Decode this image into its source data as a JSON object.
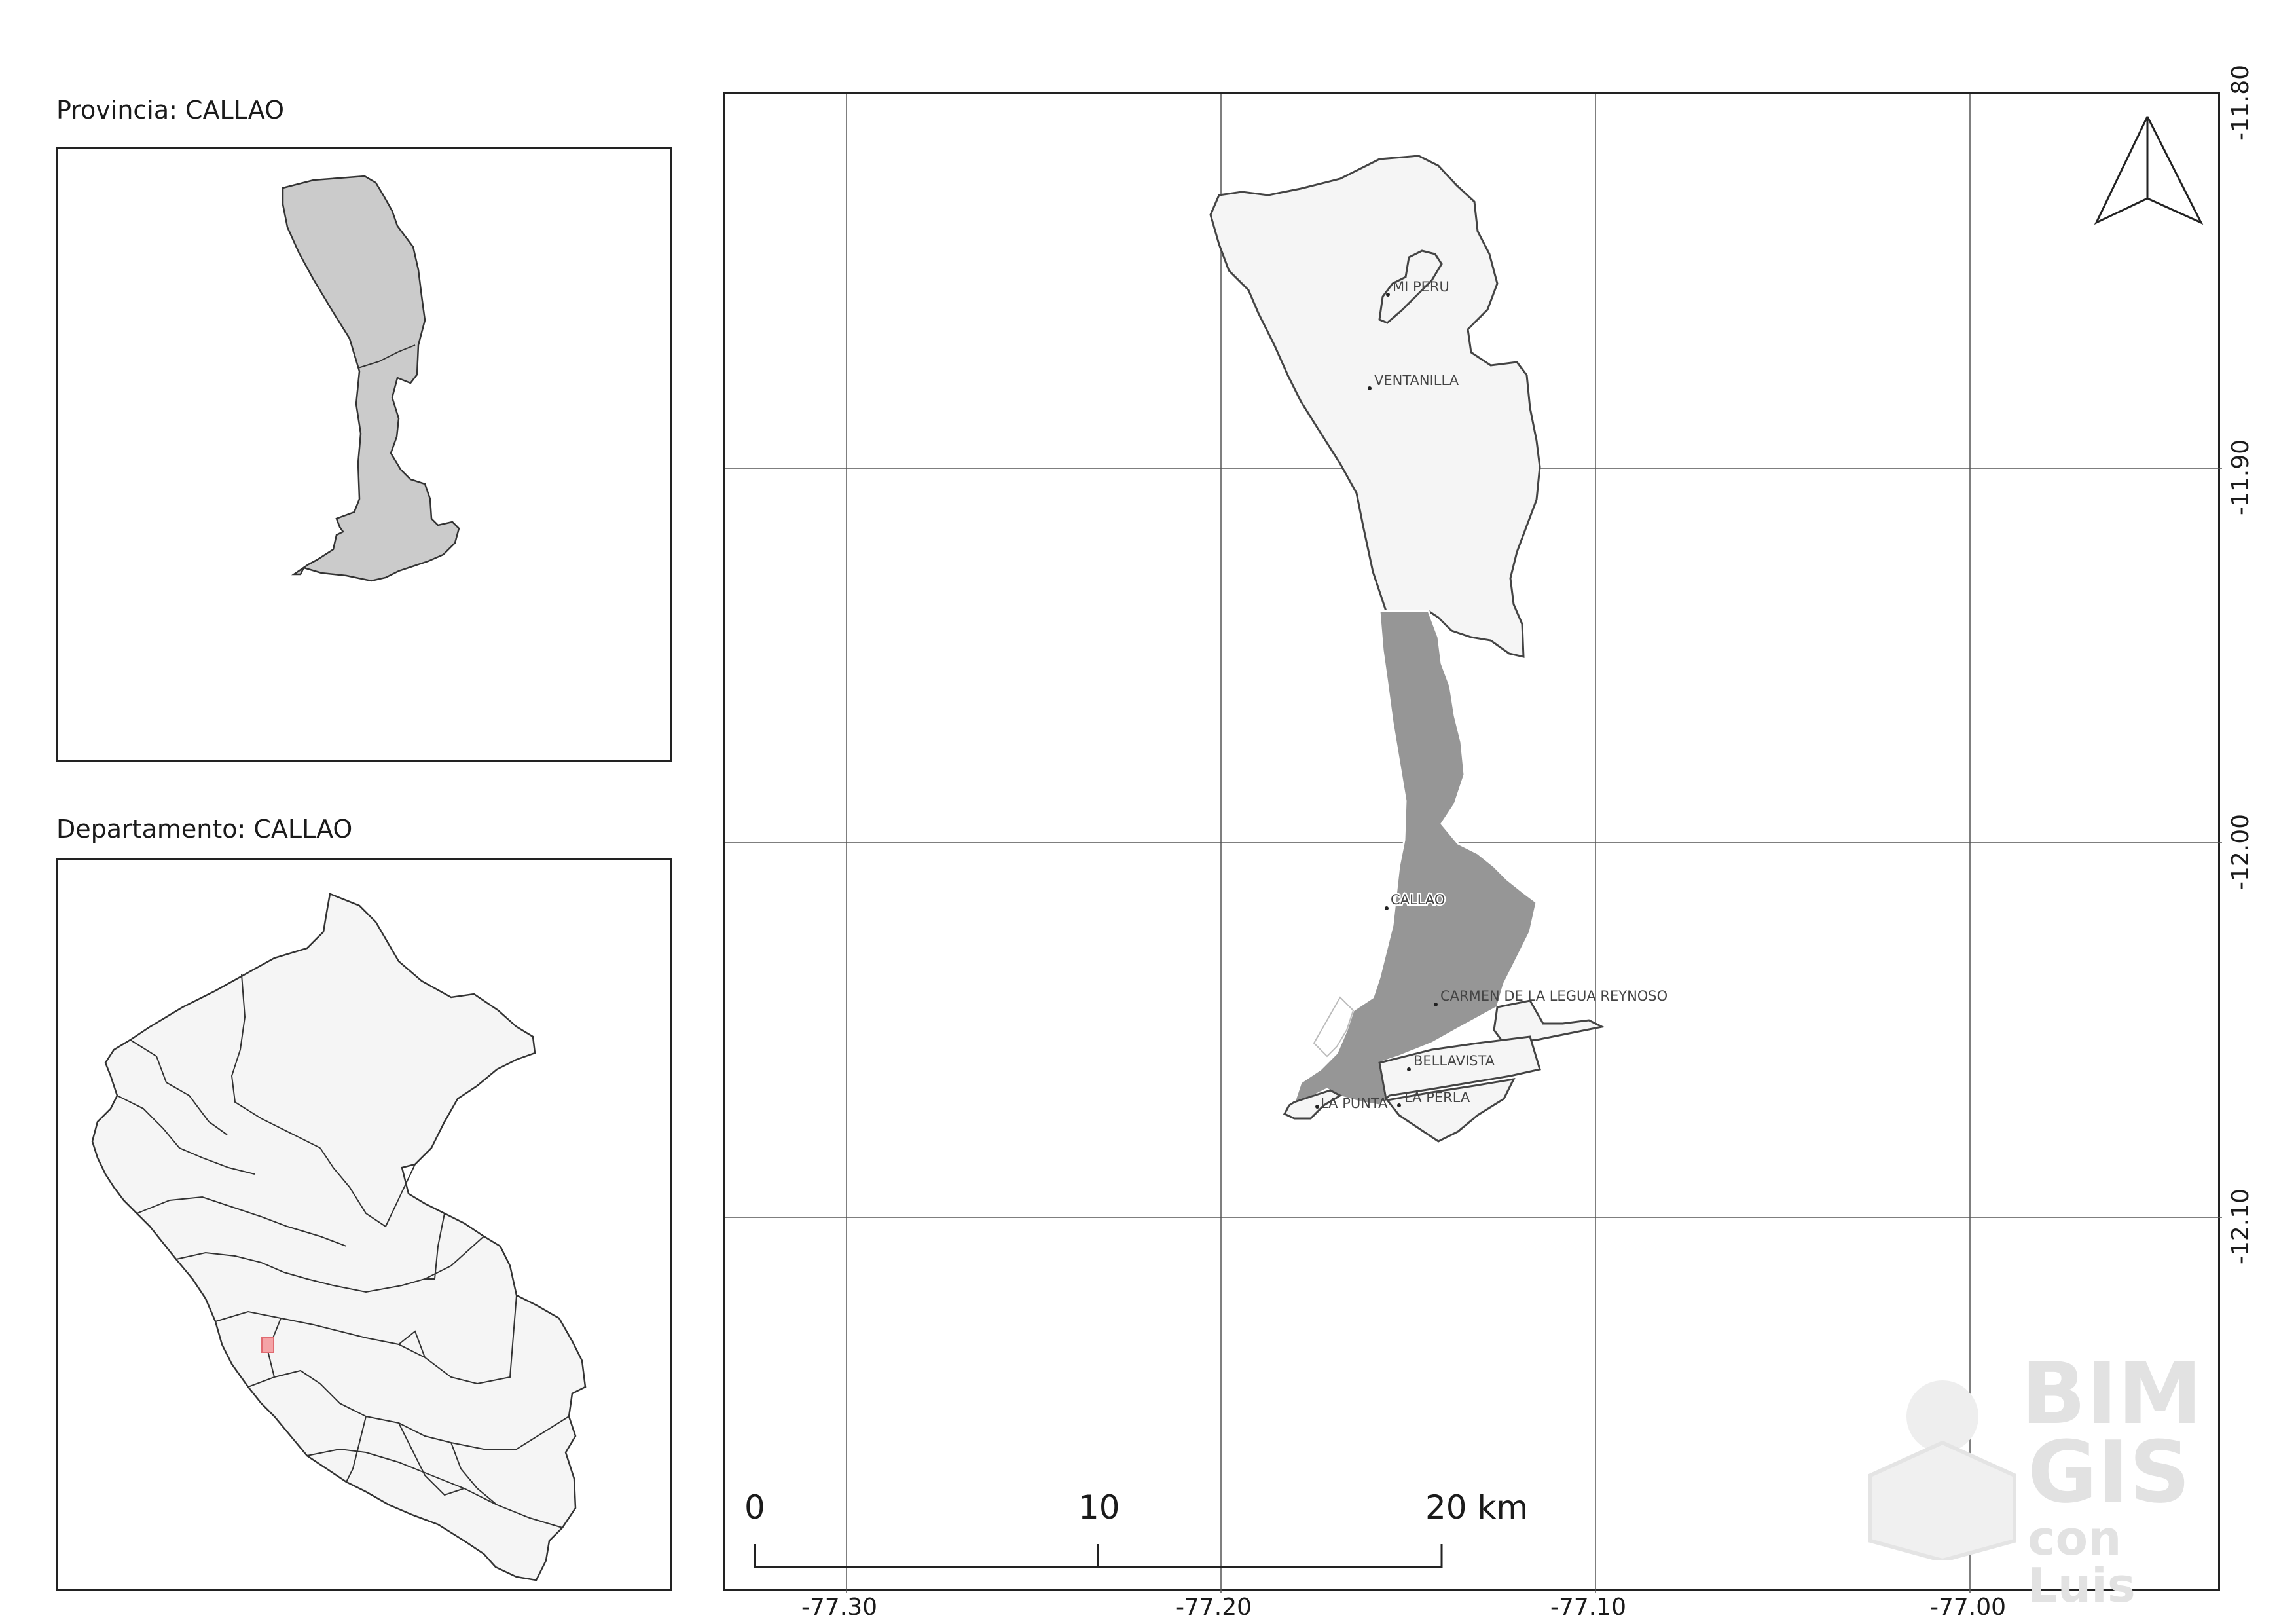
{
  "inset_province": {
    "caption": "Provincia: CALLAO"
  },
  "inset_department": {
    "caption": "Departamento: CALLAO"
  },
  "main_map": {
    "longitude_ticks": [
      "-77.30",
      "-77.20",
      "-77.10",
      "-77.00"
    ],
    "latitude_ticks": [
      "-11.80",
      "-11.90",
      "-12.00",
      "-12.10"
    ],
    "districts": [
      {
        "name": "MI PERU",
        "fill": "#f5f5f5"
      },
      {
        "name": "VENTANILLA",
        "fill": "#f5f5f5"
      },
      {
        "name": "CALLAO",
        "fill": "#969696"
      },
      {
        "name": "CARMEN DE LA LEGUA REYNOSO",
        "fill": "#f5f5f5"
      },
      {
        "name": "BELLAVISTA",
        "fill": "#f5f5f5"
      },
      {
        "name": "LA PERLA",
        "fill": "#f5f5f5"
      },
      {
        "name": "LA PUNTA",
        "fill": "#f5f5f5"
      }
    ],
    "highlight_color": "#969696",
    "north_arrow_icon": "north-arrow-icon"
  },
  "scale_bar": {
    "ticks": [
      "0",
      "10",
      "20 km"
    ]
  },
  "watermark": {
    "line1": "BIM",
    "line2": "GIS",
    "line3": "con Luis"
  }
}
